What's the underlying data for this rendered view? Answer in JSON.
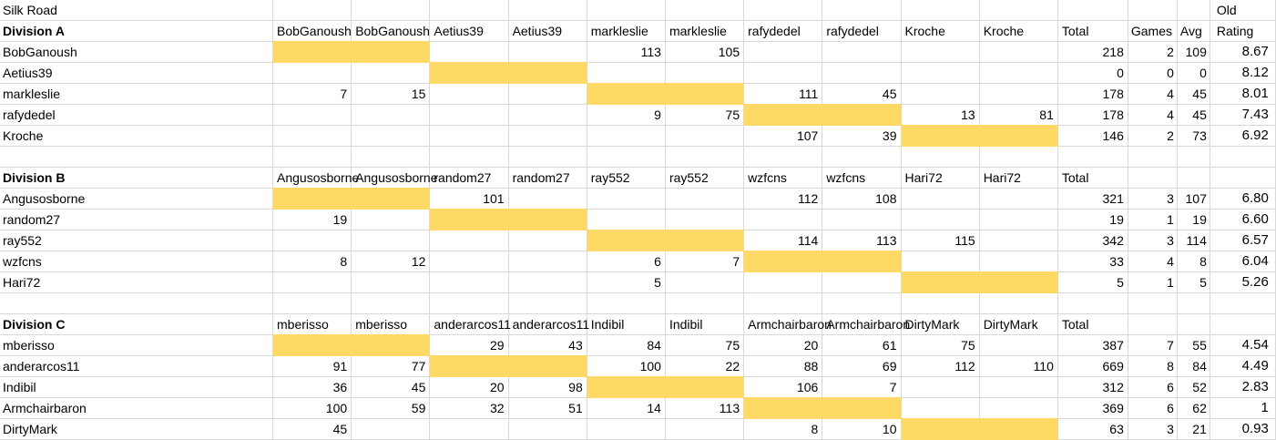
{
  "title": "Silk Road",
  "old_label": "Old",
  "colors": {
    "highlight": "#FFD966",
    "gridline": "#D9D9D9",
    "text": "#000000"
  },
  "divisions": [
    {
      "label": "Division A",
      "col_headers": [
        "BobGanoush",
        "BobGanoush",
        "Aetius39",
        "Aetius39",
        "markleslie",
        "markleslie",
        "rafydedel",
        "rafydedel",
        "Kroche",
        "Kroche"
      ],
      "summary_headers": [
        "Total",
        "Games",
        "Avg",
        "Rating"
      ],
      "rows": [
        {
          "name": "BobGanoush",
          "cells": [
            "",
            "",
            "",
            "",
            "113",
            "105",
            "",
            "",
            "",
            ""
          ],
          "highlight_cols": [
            0,
            1
          ],
          "total": "218",
          "games": "2",
          "avg": "109",
          "rating": "8.67"
        },
        {
          "name": "Aetius39",
          "cells": [
            "",
            "",
            "",
            "",
            "",
            "",
            "",
            "",
            "",
            ""
          ],
          "highlight_cols": [
            2,
            3
          ],
          "total": "0",
          "games": "0",
          "avg": "0",
          "rating": "8.12"
        },
        {
          "name": "markleslie",
          "cells": [
            "7",
            "15",
            "",
            "",
            "",
            "",
            "111",
            "45",
            "",
            ""
          ],
          "highlight_cols": [
            4,
            5
          ],
          "total": "178",
          "games": "4",
          "avg": "45",
          "rating": "8.01"
        },
        {
          "name": "rafydedel",
          "cells": [
            "",
            "",
            "",
            "",
            "9",
            "75",
            "",
            "",
            "13",
            "81"
          ],
          "highlight_cols": [
            6,
            7
          ],
          "total": "178",
          "games": "4",
          "avg": "45",
          "rating": "7.43"
        },
        {
          "name": "Kroche",
          "cells": [
            "",
            "",
            "",
            "",
            "",
            "",
            "107",
            "39",
            "",
            ""
          ],
          "highlight_cols": [
            8,
            9
          ],
          "total": "146",
          "games": "2",
          "avg": "73",
          "rating": "6.92"
        }
      ]
    },
    {
      "label": "Division B",
      "col_headers": [
        "Angusosborne",
        "Angusosborne",
        "random27",
        "random27",
        "ray552",
        "ray552",
        "wzfcns",
        "wzfcns",
        "Hari72",
        "Hari72"
      ],
      "summary_headers": [
        "Total"
      ],
      "rows": [
        {
          "name": "Angusosborne",
          "cells": [
            "",
            "",
            "101",
            "",
            "",
            "",
            "112",
            "108",
            "",
            ""
          ],
          "highlight_cols": [
            0,
            1
          ],
          "total": "321",
          "games": "3",
          "avg": "107",
          "rating": "6.80"
        },
        {
          "name": "random27",
          "cells": [
            "19",
            "",
            "",
            "",
            "",
            "",
            "",
            "",
            "",
            ""
          ],
          "highlight_cols": [
            2,
            3
          ],
          "total": "19",
          "games": "1",
          "avg": "19",
          "rating": "6.60"
        },
        {
          "name": "ray552",
          "cells": [
            "",
            "",
            "",
            "",
            "",
            "",
            "114",
            "113",
            "115",
            ""
          ],
          "highlight_cols": [
            4,
            5
          ],
          "total": "342",
          "games": "3",
          "avg": "114",
          "rating": "6.57"
        },
        {
          "name": "wzfcns",
          "cells": [
            "8",
            "12",
            "",
            "",
            "6",
            "7",
            "",
            "",
            "",
            ""
          ],
          "highlight_cols": [
            6,
            7
          ],
          "total": "33",
          "games": "4",
          "avg": "8",
          "rating": "6.04"
        },
        {
          "name": "Hari72",
          "cells": [
            "",
            "",
            "",
            "",
            "5",
            "",
            "",
            "",
            "",
            ""
          ],
          "highlight_cols": [
            8,
            9
          ],
          "total": "5",
          "games": "1",
          "avg": "5",
          "rating": "5.26"
        }
      ]
    },
    {
      "label": "Division C",
      "col_headers": [
        "mberisso",
        "mberisso",
        "anderarcos11",
        "anderarcos11",
        "Indibil",
        "Indibil",
        "Armchairbaron",
        "Armchairbaron",
        "DirtyMark",
        "DirtyMark"
      ],
      "summary_headers": [
        "Total"
      ],
      "rows": [
        {
          "name": "mberisso",
          "cells": [
            "",
            "",
            "29",
            "43",
            "84",
            "75",
            "20",
            "61",
            "75",
            ""
          ],
          "highlight_cols": [
            0,
            1
          ],
          "total": "387",
          "games": "7",
          "avg": "55",
          "rating": "4.54"
        },
        {
          "name": "anderarcos11",
          "cells": [
            "91",
            "77",
            "",
            "",
            "100",
            "22",
            "88",
            "69",
            "112",
            "110"
          ],
          "highlight_cols": [
            2,
            3
          ],
          "total": "669",
          "games": "8",
          "avg": "84",
          "rating": "4.49"
        },
        {
          "name": "Indibil",
          "cells": [
            "36",
            "45",
            "20",
            "98",
            "",
            "",
            "106",
            "7",
            "",
            ""
          ],
          "highlight_cols": [
            4,
            5
          ],
          "total": "312",
          "games": "6",
          "avg": "52",
          "rating": "2.83"
        },
        {
          "name": "Armchairbaron",
          "cells": [
            "100",
            "59",
            "32",
            "51",
            "14",
            "113",
            "",
            "",
            "",
            ""
          ],
          "highlight_cols": [
            6,
            7
          ],
          "total": "369",
          "games": "6",
          "avg": "62",
          "rating": "1"
        },
        {
          "name": "DirtyMark",
          "cells": [
            "45",
            "",
            "",
            "",
            "",
            "",
            "8",
            "10",
            "",
            ""
          ],
          "highlight_cols": [
            8,
            9
          ],
          "total": "63",
          "games": "3",
          "avg": "21",
          "rating": "0.93"
        }
      ]
    }
  ]
}
